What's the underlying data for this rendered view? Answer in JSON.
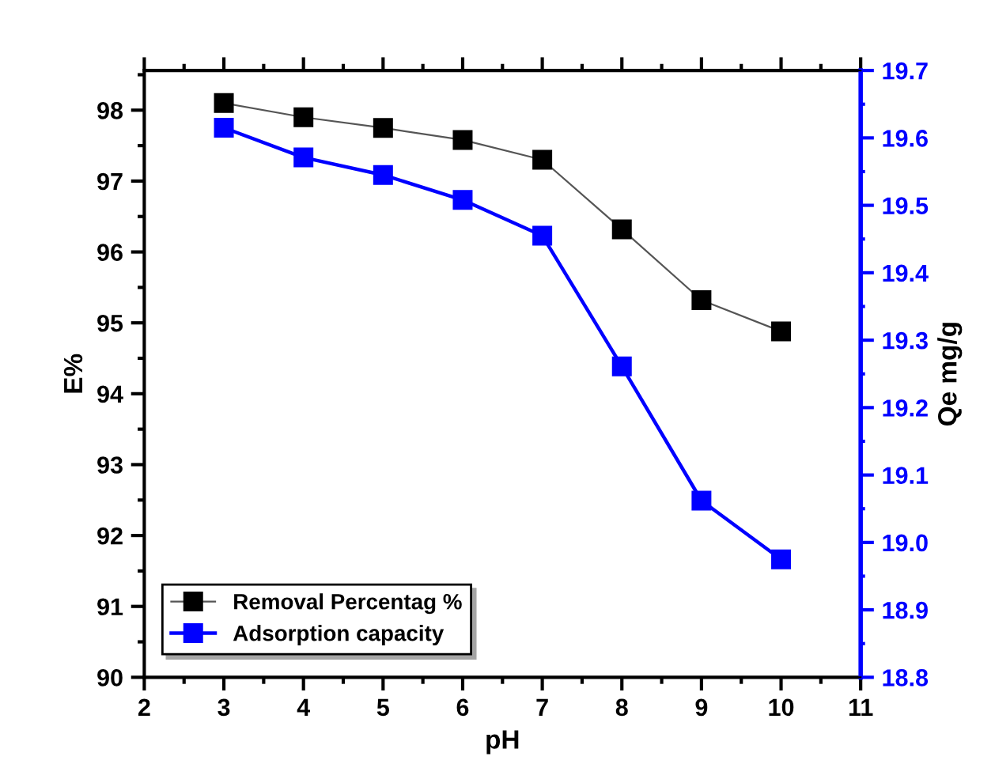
{
  "chart_data": {
    "type": "line",
    "xlabel": "pH",
    "ylabel": "E%",
    "y2label": "Qe mg/g",
    "x": [
      3,
      4,
      5,
      6,
      7,
      8,
      9,
      10
    ],
    "series": [
      {
        "name": "Removal Percentag %",
        "color": "#000000",
        "values": [
          98.1,
          97.9,
          97.75,
          97.58,
          97.3,
          96.32,
          95.32,
          94.88
        ]
      },
      {
        "name": "Adsorption capacity",
        "color": "#0000ff",
        "axis": "y2",
        "values": [
          19.615,
          19.571,
          19.545,
          19.508,
          19.455,
          19.261,
          19.062,
          18.975
        ]
      }
    ],
    "xlim": [
      2,
      11
    ],
    "xticks": [
      2,
      3,
      4,
      5,
      6,
      7,
      8,
      9,
      10,
      11
    ],
    "ylim": [
      90,
      98.56
    ],
    "yticks": [
      90,
      91,
      92,
      93,
      94,
      95,
      96,
      97,
      98
    ],
    "y2lim": [
      18.8,
      19.7
    ],
    "y2ticks": [
      {
        "value": 18.8,
        "label": "18.8"
      },
      {
        "value": 18.9,
        "label": "18.9"
      },
      {
        "value": 19.0,
        "label": "19.0"
      },
      {
        "value": 19.1,
        "label": "19.1"
      },
      {
        "value": 19.2,
        "label": "19.2"
      },
      {
        "value": 19.3,
        "label": "19.3"
      },
      {
        "value": 19.4,
        "label": "19.4"
      },
      {
        "value": 19.5,
        "label": "19.5"
      },
      {
        "value": 19.6,
        "label": "19.6"
      },
      {
        "value": 19.7,
        "label": "19.7"
      }
    ],
    "marker": "square",
    "line_style": "solid",
    "legend": "bottom left",
    "grid": false
  }
}
